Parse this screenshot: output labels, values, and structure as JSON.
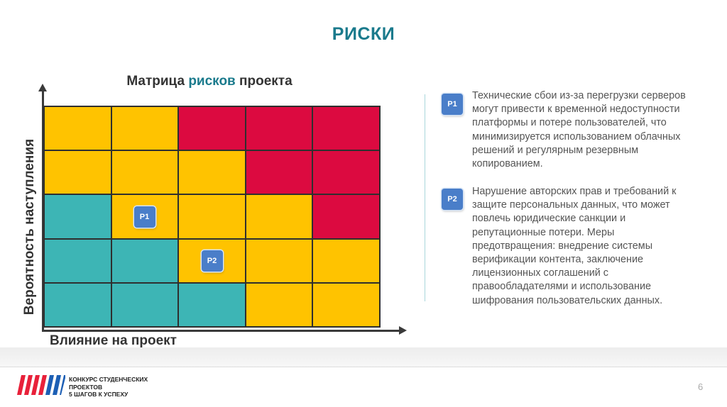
{
  "slide": {
    "title": "РИСКИ",
    "page_number": "6"
  },
  "matrix": {
    "title_part1": "Матрица ",
    "title_accent": "рисков",
    "title_part2": " проекта",
    "y_axis_label": "Вероятность наступления",
    "x_axis_label": "Влияние на проект",
    "colors": {
      "green": "#3db5b5",
      "yellow": "#ffc300",
      "red": "#dc0a40",
      "accent": "#1a7a8c",
      "badge": "#4a7ec9"
    },
    "rows": [
      [
        "yellow",
        "yellow",
        "red",
        "red",
        "red"
      ],
      [
        "yellow",
        "yellow",
        "yellow",
        "red",
        "red"
      ],
      [
        "green",
        "yellow",
        "yellow",
        "yellow",
        "red"
      ],
      [
        "green",
        "green",
        "yellow",
        "yellow",
        "yellow"
      ],
      [
        "green",
        "green",
        "green",
        "yellow",
        "yellow"
      ]
    ],
    "markers": [
      {
        "label": "P1",
        "row": 2,
        "col": 1
      },
      {
        "label": "P2",
        "row": 3,
        "col": 2
      }
    ]
  },
  "risks": [
    {
      "badge": "P1",
      "text": "Технические сбои из-за перегрузки серверов могут привести к временной недоступности платформы и потере пользователей, что минимизируется использованием облачных решений и регулярным резервным копированием."
    },
    {
      "badge": "P2",
      "text": "Нарушение авторских прав и требований  к  защите персональных данных, что может повлечь юридические санкции и репутационные потери. Меры предотвращения: внедрение системы верификации контента, заключение лицензионных соглашений с правообладателями и использование шифрования пользовательских данных."
    }
  ],
  "footer": {
    "line1": "КОНКУРС СТУДЕНЧЕСКИХ",
    "line2": "ПРОЕКТОВ",
    "line3": "5 ШАГОВ К УСПЕХУ"
  }
}
